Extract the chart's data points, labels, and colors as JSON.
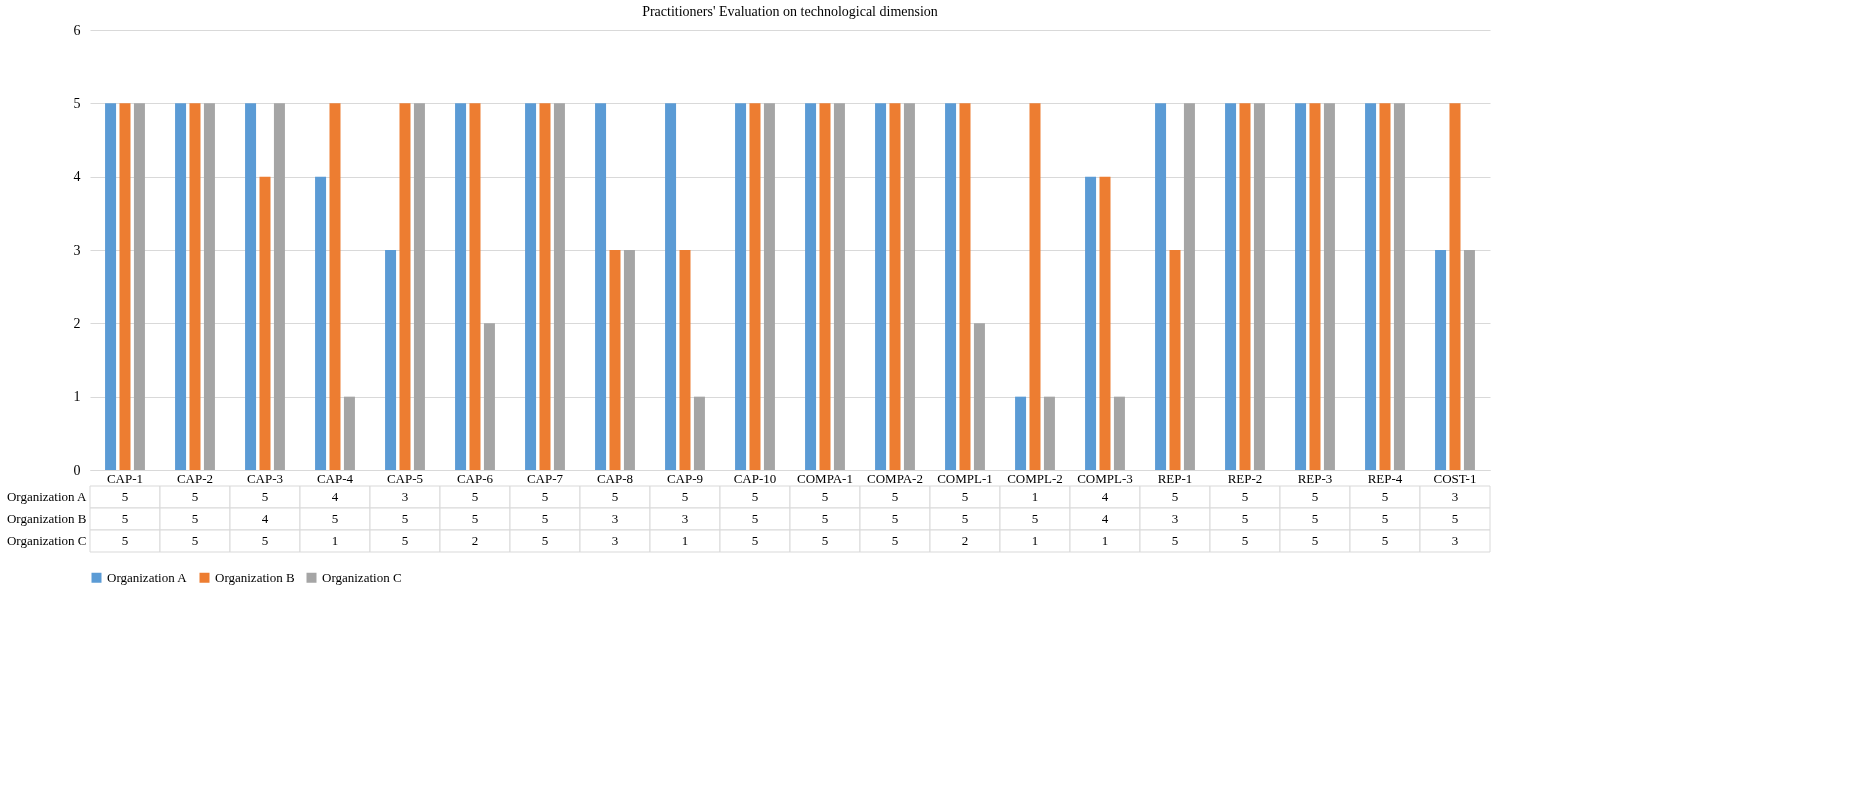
{
  "chart_data": {
    "type": "bar",
    "title": "Practitioners' Evaluation on technological dimension",
    "categories": [
      "CAP-1",
      "CAP-2",
      "CAP-3",
      "CAP-4",
      "CAP-5",
      "CAP-6",
      "CAP-7",
      "CAP-8",
      "CAP-9",
      "CAP-10",
      "COMPA-1",
      "COMPA-2",
      "COMPL-1",
      "COMPL-2",
      "COMPL-3",
      "REP-1",
      "REP-2",
      "REP-3",
      "REP-4",
      "COST-1"
    ],
    "series": [
      {
        "name": "Organization A",
        "color": "#5b9bd5",
        "values": [
          5,
          5,
          5,
          4,
          3,
          5,
          5,
          5,
          5,
          5,
          5,
          5,
          5,
          1,
          4,
          5,
          5,
          5,
          5,
          3
        ]
      },
      {
        "name": "Organization B",
        "color": "#ed7d31",
        "values": [
          5,
          5,
          4,
          5,
          5,
          5,
          5,
          3,
          3,
          5,
          5,
          5,
          5,
          5,
          4,
          3,
          5,
          5,
          5,
          5
        ]
      },
      {
        "name": "Organization C",
        "color": "#a5a5a5",
        "values": [
          5,
          5,
          5,
          1,
          5,
          2,
          5,
          3,
          1,
          5,
          5,
          5,
          2,
          1,
          1,
          5,
          5,
          5,
          5,
          3
        ]
      }
    ],
    "ylim": [
      0,
      6
    ],
    "yticks": [
      0,
      1,
      2,
      3,
      4,
      5,
      6
    ],
    "grid": "y",
    "legend": "bottom",
    "data_labels": true
  }
}
